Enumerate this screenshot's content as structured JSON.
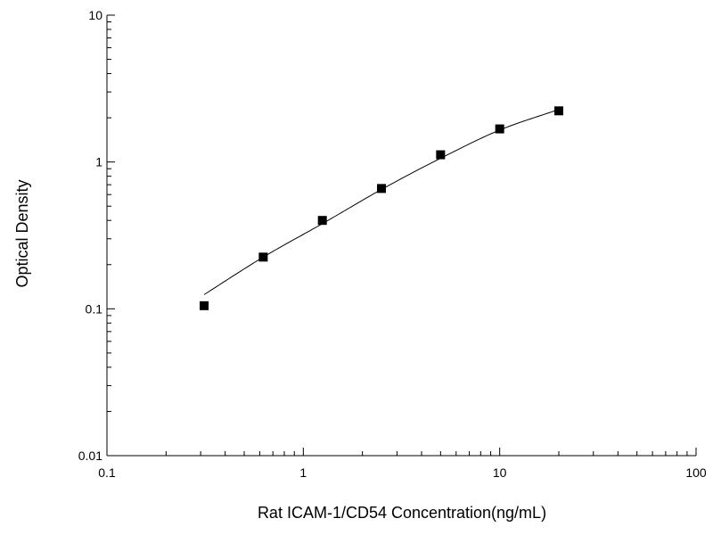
{
  "chart_data": {
    "type": "scatter",
    "title": "",
    "xlabel": "Rat   ICAM-1/CD54 Concentration(ng/mL)",
    "ylabel": "Optical Density",
    "x_scale": "log",
    "y_scale": "log",
    "xlim": [
      0.1,
      100
    ],
    "ylim": [
      0.01,
      10
    ],
    "x_ticks": [
      {
        "value": 0.1,
        "label": "0.1"
      },
      {
        "value": 1,
        "label": "1"
      },
      {
        "value": 10,
        "label": "10"
      },
      {
        "value": 100,
        "label": "100"
      }
    ],
    "y_ticks": [
      {
        "value": 0.01,
        "label": "0.01"
      },
      {
        "value": 0.1,
        "label": "0.1"
      },
      {
        "value": 1,
        "label": "1"
      },
      {
        "value": 10,
        "label": "10"
      }
    ],
    "grid": false,
    "series": [
      {
        "marker": "square",
        "color": "#000000",
        "x": [
          0.3125,
          0.625,
          1.25,
          2.5,
          5,
          10,
          20
        ],
        "y": [
          0.105,
          0.225,
          0.4,
          0.66,
          1.12,
          1.68,
          2.23
        ]
      }
    ],
    "fit_curve": {
      "color": "#000000",
      "x": [
        0.3125,
        0.625,
        1.25,
        2.5,
        5,
        10,
        20
      ],
      "y": [
        0.125,
        0.225,
        0.38,
        0.65,
        1.06,
        1.65,
        2.28
      ]
    }
  }
}
